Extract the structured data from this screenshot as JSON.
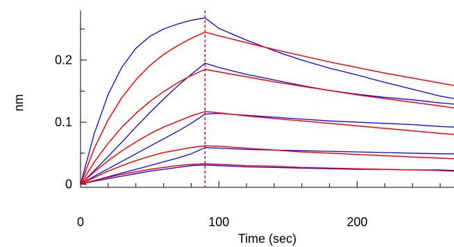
{
  "chart_data": {
    "type": "line",
    "title": "",
    "xlabel": "Time (sec)",
    "ylabel": "nm",
    "xlim": [
      0,
      270
    ],
    "ylim": [
      -0.005,
      0.28
    ],
    "x_ticks": [
      0,
      100,
      200
    ],
    "x_tick_labels": [
      "0",
      "100",
      "200"
    ],
    "y_ticks": [
      0,
      0.1,
      0.2
    ],
    "y_tick_labels": [
      "0",
      "0.1",
      "0.2"
    ],
    "grid": false,
    "legend": "none",
    "association_end": 90,
    "colors": {
      "measured": "#0000ff",
      "fit": "#ff0000",
      "axis": "#000000"
    },
    "series": [
      {
        "kind": "measured",
        "x": [
          0,
          10,
          20,
          30,
          40,
          50,
          60,
          70,
          80,
          90,
          100,
          120,
          140,
          160,
          180,
          200,
          220,
          240,
          260,
          270
        ],
        "y": [
          0,
          0.082,
          0.145,
          0.189,
          0.219,
          0.238,
          0.25,
          0.258,
          0.264,
          0.268,
          0.251,
          0.232,
          0.215,
          0.2,
          0.187,
          0.176,
          0.164,
          0.153,
          0.142,
          0.138
        ]
      },
      {
        "kind": "fit",
        "x": [
          0,
          10,
          20,
          30,
          40,
          50,
          60,
          70,
          80,
          90,
          100,
          120,
          140,
          160,
          180,
          200,
          220,
          240,
          260,
          270
        ],
        "y": [
          0,
          0.058,
          0.104,
          0.14,
          0.168,
          0.191,
          0.209,
          0.223,
          0.235,
          0.245,
          0.239,
          0.228,
          0.217,
          0.207,
          0.197,
          0.188,
          0.179,
          0.171,
          0.163,
          0.159
        ]
      },
      {
        "kind": "measured",
        "x": [
          0,
          10,
          20,
          30,
          40,
          50,
          60,
          70,
          80,
          90,
          100,
          120,
          140,
          160,
          180,
          200,
          220,
          240,
          260,
          270
        ],
        "y": [
          0,
          0.022,
          0.045,
          0.068,
          0.092,
          0.115,
          0.137,
          0.158,
          0.177,
          0.195,
          0.188,
          0.177,
          0.168,
          0.159,
          0.151,
          0.145,
          0.14,
          0.136,
          0.131,
          0.129
        ]
      },
      {
        "kind": "fit",
        "x": [
          0,
          10,
          20,
          30,
          40,
          50,
          60,
          70,
          80,
          90,
          100,
          120,
          140,
          160,
          180,
          200,
          220,
          240,
          260,
          270
        ],
        "y": [
          0,
          0.036,
          0.066,
          0.092,
          0.114,
          0.133,
          0.149,
          0.163,
          0.175,
          0.185,
          0.181,
          0.173,
          0.165,
          0.158,
          0.151,
          0.144,
          0.138,
          0.132,
          0.126,
          0.123
        ]
      },
      {
        "kind": "measured",
        "x": [
          0,
          10,
          20,
          30,
          40,
          50,
          60,
          70,
          80,
          90,
          100,
          120,
          140,
          160,
          180,
          200,
          220,
          240,
          260,
          270
        ],
        "y": [
          0,
          0.013,
          0.025,
          0.037,
          0.049,
          0.061,
          0.073,
          0.085,
          0.098,
          0.113,
          0.114,
          0.111,
          0.108,
          0.105,
          0.102,
          0.1,
          0.098,
          0.096,
          0.093,
          0.092
        ]
      },
      {
        "kind": "fit",
        "x": [
          0,
          10,
          20,
          30,
          40,
          50,
          60,
          70,
          80,
          90,
          100,
          120,
          140,
          160,
          180,
          200,
          220,
          240,
          260,
          270
        ],
        "y": [
          0,
          0.02,
          0.038,
          0.054,
          0.068,
          0.081,
          0.092,
          0.101,
          0.11,
          0.117,
          0.115,
          0.11,
          0.106,
          0.102,
          0.098,
          0.094,
          0.09,
          0.086,
          0.082,
          0.08
        ]
      },
      {
        "kind": "measured",
        "x": [
          0,
          10,
          20,
          30,
          40,
          50,
          60,
          70,
          80,
          90,
          100,
          120,
          140,
          160,
          180,
          200,
          220,
          240,
          260,
          270
        ],
        "y": [
          0,
          0.006,
          0.012,
          0.018,
          0.024,
          0.03,
          0.036,
          0.042,
          0.049,
          0.059,
          0.058,
          0.056,
          0.055,
          0.054,
          0.053,
          0.052,
          0.051,
          0.05,
          0.049,
          0.049
        ]
      },
      {
        "kind": "fit",
        "x": [
          0,
          10,
          20,
          30,
          40,
          50,
          60,
          70,
          80,
          90,
          100,
          120,
          140,
          160,
          180,
          200,
          220,
          240,
          260,
          270
        ],
        "y": [
          0,
          0.011,
          0.021,
          0.03,
          0.038,
          0.045,
          0.051,
          0.055,
          0.059,
          0.062,
          0.061,
          0.058,
          0.055,
          0.052,
          0.05,
          0.048,
          0.046,
          0.044,
          0.042,
          0.041
        ]
      },
      {
        "kind": "measured",
        "x": [
          0,
          10,
          20,
          30,
          40,
          50,
          60,
          70,
          80,
          90,
          100,
          120,
          140,
          160,
          180,
          200,
          220,
          240,
          260,
          270
        ],
        "y": [
          0,
          0.005,
          0.009,
          0.013,
          0.017,
          0.021,
          0.024,
          0.027,
          0.03,
          0.031,
          0.03,
          0.028,
          0.027,
          0.026,
          0.025,
          0.024,
          0.024,
          0.023,
          0.023,
          0.022
        ]
      },
      {
        "kind": "fit",
        "x": [
          0,
          10,
          20,
          30,
          40,
          50,
          60,
          70,
          80,
          90,
          100,
          120,
          140,
          160,
          180,
          200,
          220,
          240,
          260,
          270
        ],
        "y": [
          0,
          0.006,
          0.011,
          0.016,
          0.02,
          0.024,
          0.027,
          0.03,
          0.032,
          0.033,
          0.032,
          0.03,
          0.029,
          0.027,
          0.026,
          0.025,
          0.024,
          0.023,
          0.022,
          0.021
        ]
      }
    ]
  }
}
